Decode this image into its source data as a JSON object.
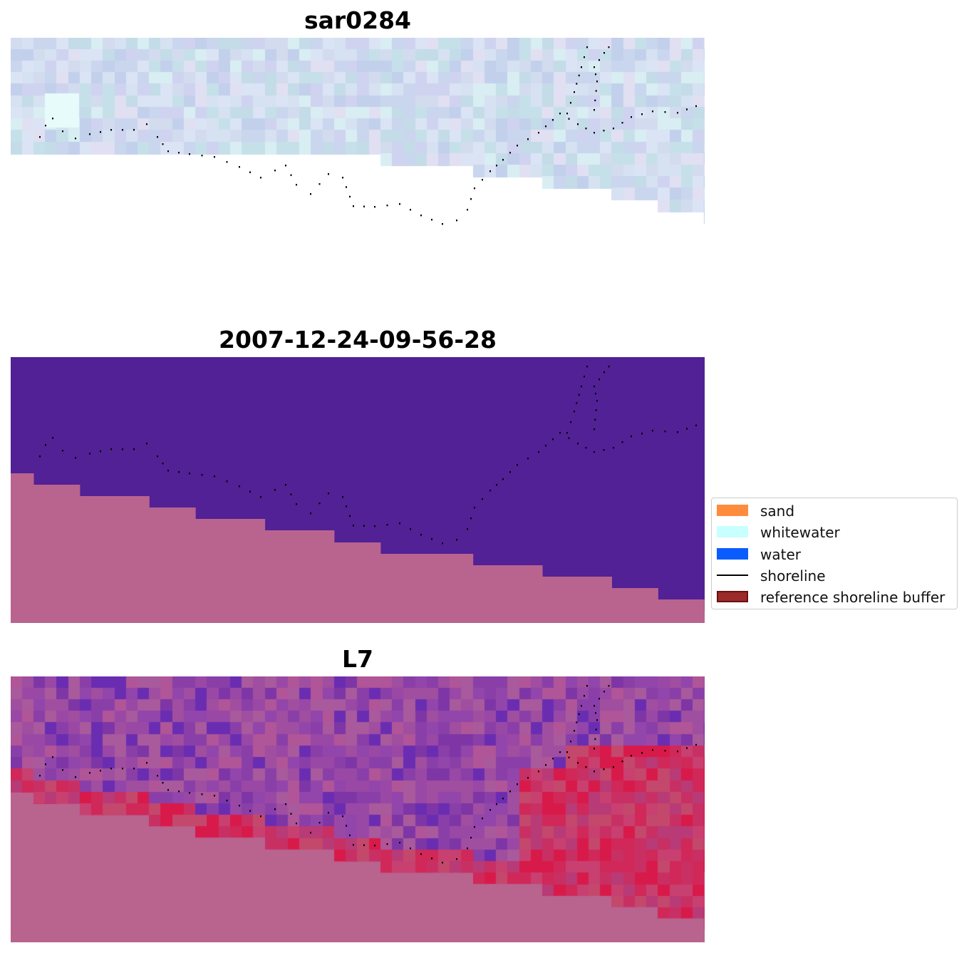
{
  "panels": [
    {
      "title": "sar0284",
      "kind": "rgb"
    },
    {
      "title": "2007-12-24-09-56-28",
      "kind": "classified"
    },
    {
      "title": "L7",
      "kind": "index"
    }
  ],
  "legend": {
    "items": [
      {
        "label": "sand",
        "color": "#ff8c3d",
        "type": "patch"
      },
      {
        "label": "whitewater",
        "color": "#c8ffff",
        "type": "patch"
      },
      {
        "label": "water",
        "color": "#0a5cff",
        "type": "patch"
      },
      {
        "label": "shoreline",
        "color": "#000000",
        "type": "line"
      },
      {
        "label": "reference shoreline buffer",
        "color": "#9b2a2a",
        "edge": "#6a1010",
        "type": "patch"
      }
    ]
  },
  "colors": {
    "nodata": "#b9638f",
    "water_class": "#512195",
    "rgb_base": "#c8d8ea",
    "index_low": "#7a3aa8",
    "index_high": "#d01040"
  }
}
